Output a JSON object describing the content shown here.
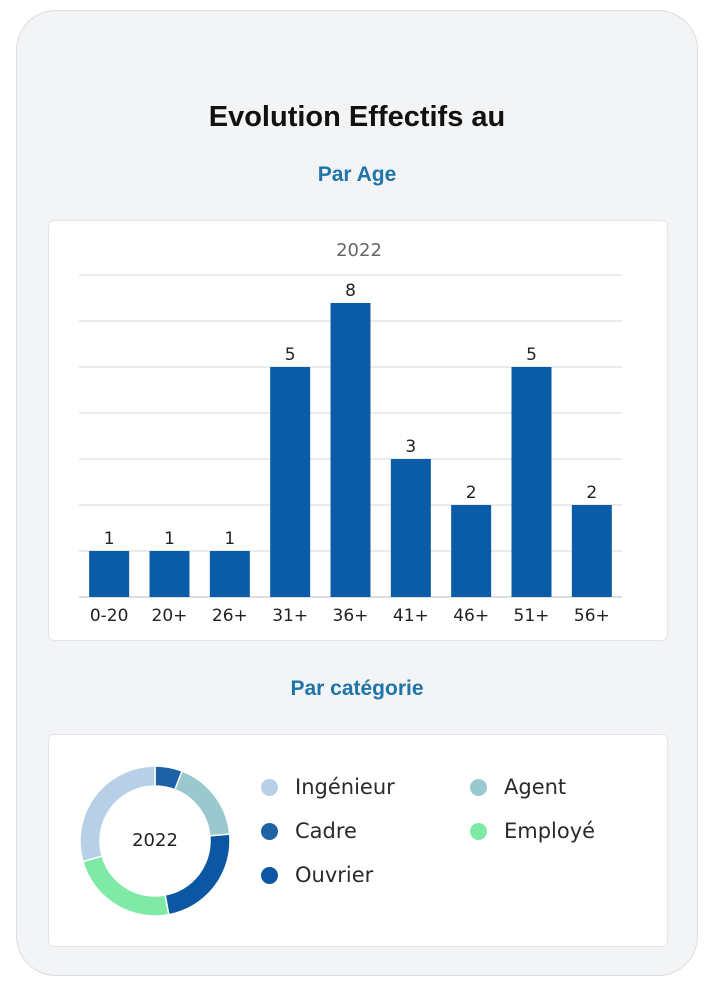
{
  "title": "Evolution Effectifs au",
  "sections": {
    "age": "Par Age",
    "category": "Par catégorie"
  },
  "colors": {
    "bar": "#0a5ca8",
    "Ingénieur": "#b8cfe8",
    "Agent": "#9ac8cf",
    "Cadre": "#1e62a6",
    "Employé": "#7eeaa6",
    "Ouvrier": "#0b57a4"
  },
  "chart_data": [
    {
      "type": "bar",
      "title": "2022",
      "categories": [
        "0-20",
        "20+",
        "26+",
        "31+",
        "36+",
        "41+",
        "46+",
        "51+",
        "56+"
      ],
      "values": [
        1,
        1,
        1,
        5,
        8,
        3,
        2,
        5,
        2
      ],
      "ylim": [
        0,
        7
      ],
      "grid": true,
      "data_labels": [
        "1",
        "1",
        "1",
        "5",
        "8",
        "3",
        "2",
        "5",
        "2"
      ]
    },
    {
      "type": "pie",
      "variant": "donut",
      "center_label": "2022",
      "legend": "right",
      "legend_entries": [
        "Ingénieur",
        "Agent",
        "Cadre",
        "Employé",
        "Ouvrier"
      ],
      "slices": [
        {
          "name": "Cadre",
          "value": 2
        },
        {
          "name": "Agent",
          "value": 6
        },
        {
          "name": "Ouvrier",
          "value": 8
        },
        {
          "name": "Employé",
          "value": 8
        },
        {
          "name": "Ingénieur",
          "value": 10
        }
      ]
    }
  ]
}
